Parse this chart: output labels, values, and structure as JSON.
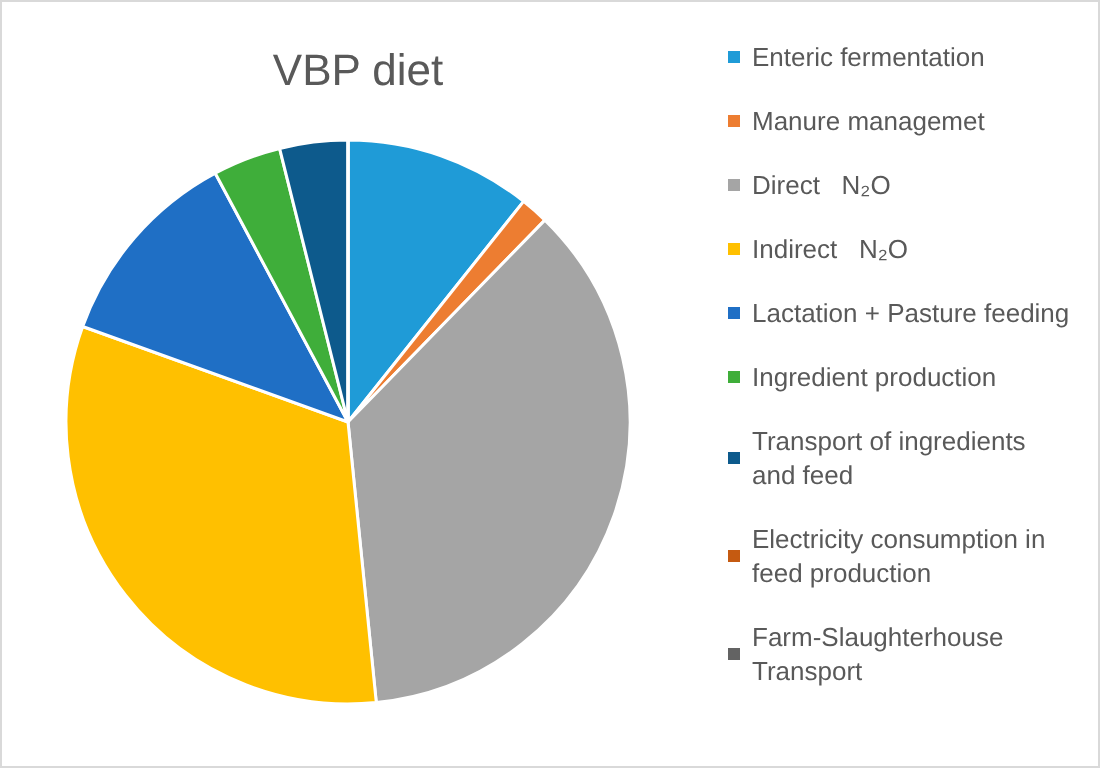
{
  "chart_data": {
    "type": "pie",
    "title": "VBP diet",
    "categories": [
      "Enteric fermentation",
      "Manure managemet",
      "Direct   N₂O",
      "Indirect   N₂O",
      "Lactation + Pasture feeding",
      "Ingredient production",
      "Transport of ingredients and feed",
      "Electricity consumption in feed production",
      "Farm-Slaughterhouse Transport"
    ],
    "values": [
      10.7,
      1.6,
      36.1,
      32.1,
      11.7,
      3.9,
      3.9,
      0,
      0
    ],
    "colors": [
      "#1f9bd7",
      "#ed7d31",
      "#a5a5a5",
      "#ffc000",
      "#1f6fc5",
      "#3fae3a",
      "#0d5a8c",
      "#c55a11",
      "#636363"
    ],
    "legend": "right"
  }
}
